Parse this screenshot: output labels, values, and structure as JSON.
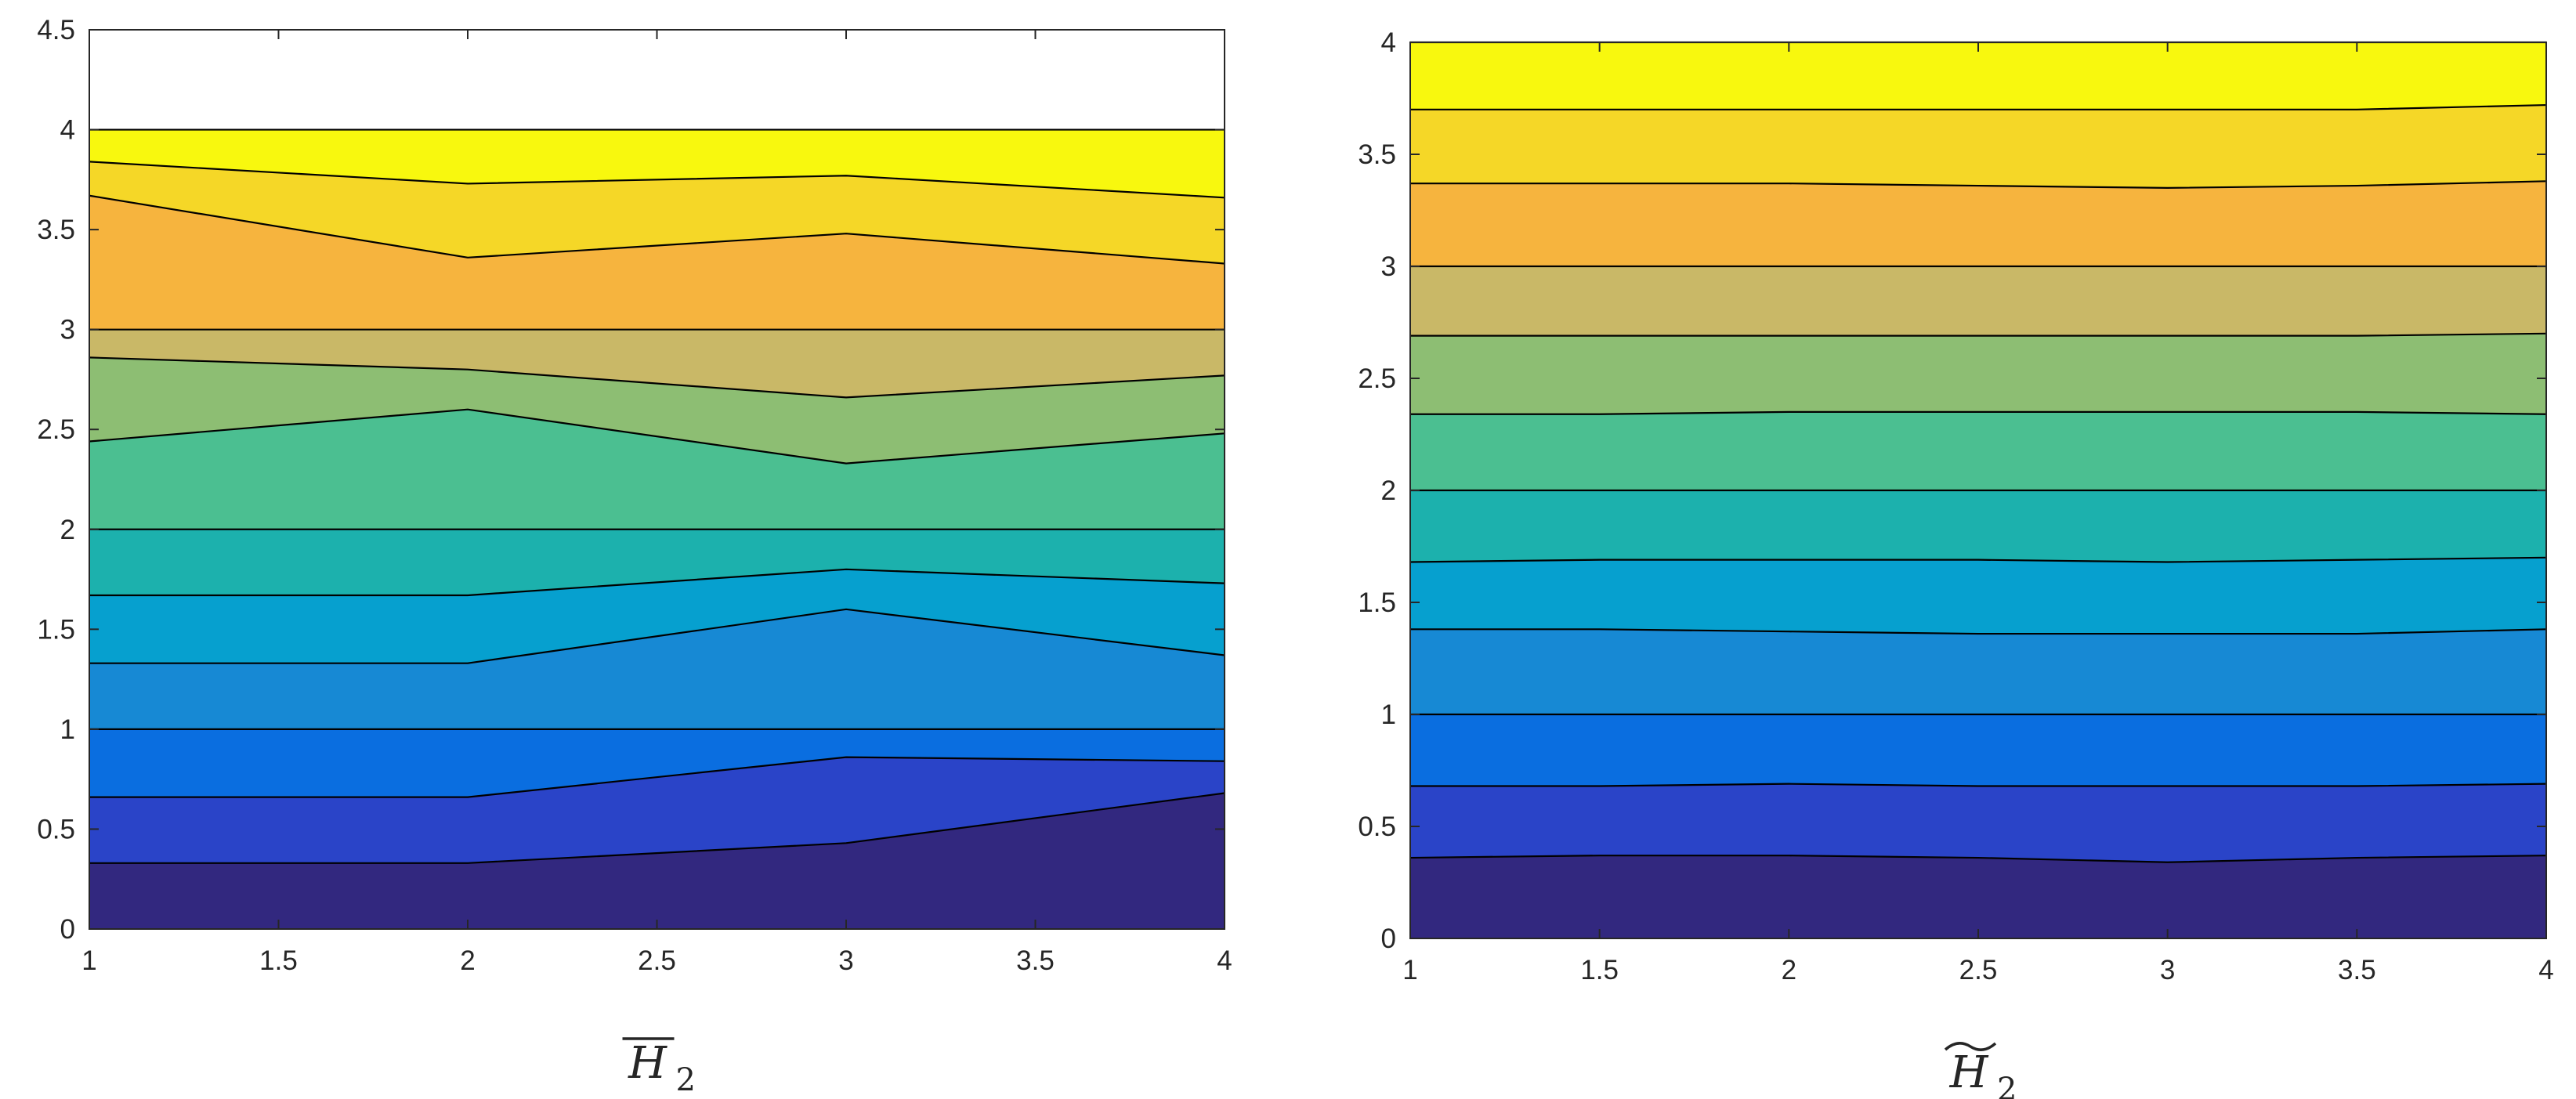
{
  "chart_data": [
    {
      "type": "contour",
      "xlabel": "H",
      "xlabel_subscript": "2",
      "xlabel_accent": "bar",
      "xlim": [
        1,
        4
      ],
      "ylim": [
        0,
        4.5
      ],
      "xticks": [
        "1",
        "1.5",
        "2",
        "2.5",
        "3",
        "3.5",
        "4"
      ],
      "yticks": [
        "0",
        "0.5",
        "1",
        "1.5",
        "2",
        "2.5",
        "3",
        "3.5",
        "4",
        "4.5"
      ],
      "x": [
        1,
        2,
        3,
        4
      ],
      "y_top": 4,
      "boundaries": [
        [
          0.33,
          0.33,
          0.43,
          0.68
        ],
        [
          0.66,
          0.66,
          0.86,
          0.84
        ],
        [
          1.0,
          1.0,
          1.0,
          1.0
        ],
        [
          1.33,
          1.33,
          1.6,
          1.37
        ],
        [
          1.67,
          1.67,
          1.8,
          1.73
        ],
        [
          2.0,
          2.0,
          2.0,
          2.0
        ],
        [
          2.44,
          2.6,
          2.33,
          2.48
        ],
        [
          2.86,
          2.8,
          2.66,
          2.77
        ],
        [
          3.0,
          3.0,
          3.0,
          3.0
        ],
        [
          3.67,
          3.36,
          3.48,
          3.33
        ],
        [
          3.84,
          3.73,
          3.77,
          3.66
        ]
      ],
      "colors": [
        "#32287f",
        "#2a44c8",
        "#0a6ee0",
        "#1789d4",
        "#06a0cf",
        "#1cb1ad",
        "#4bbf91",
        "#8dbe73",
        "#c9b867",
        "#f6b43e",
        "#f5d727",
        "#f8f80e"
      ],
      "grid": false
    },
    {
      "type": "contour",
      "xlabel": "H",
      "xlabel_subscript": "2",
      "xlabel_accent": "tilde",
      "xlim": [
        1,
        4
      ],
      "ylim": [
        0,
        4
      ],
      "xticks": [
        "1",
        "1.5",
        "2",
        "2.5",
        "3",
        "3.5",
        "4"
      ],
      "yticks": [
        "0",
        "0.5",
        "1",
        "1.5",
        "2",
        "2.5",
        "3",
        "3.5",
        "4"
      ],
      "x": [
        1,
        1.5,
        2,
        2.5,
        3,
        3.5,
        4
      ],
      "y_top": 4,
      "boundaries": [
        [
          0.36,
          0.37,
          0.37,
          0.36,
          0.34,
          0.36,
          0.37
        ],
        [
          0.68,
          0.68,
          0.69,
          0.68,
          0.68,
          0.68,
          0.69
        ],
        [
          1.0,
          1.0,
          1.0,
          1.0,
          1.0,
          1.0,
          1.0
        ],
        [
          1.38,
          1.38,
          1.37,
          1.36,
          1.36,
          1.36,
          1.38
        ],
        [
          1.68,
          1.69,
          1.69,
          1.69,
          1.68,
          1.69,
          1.7
        ],
        [
          2.0,
          2.0,
          2.0,
          2.0,
          2.0,
          2.0,
          2.0
        ],
        [
          2.34,
          2.34,
          2.35,
          2.35,
          2.35,
          2.35,
          2.34
        ],
        [
          2.69,
          2.69,
          2.69,
          2.69,
          2.69,
          2.69,
          2.7
        ],
        [
          3.0,
          3.0,
          3.0,
          3.0,
          3.0,
          3.0,
          3.0
        ],
        [
          3.37,
          3.37,
          3.37,
          3.36,
          3.35,
          3.36,
          3.38
        ],
        [
          3.7,
          3.7,
          3.7,
          3.7,
          3.7,
          3.7,
          3.72
        ]
      ],
      "colors": [
        "#32287f",
        "#2a44c8",
        "#0a6ee0",
        "#1789d4",
        "#06a0cf",
        "#1cb1ad",
        "#4bbf91",
        "#8dbe73",
        "#c9b867",
        "#f6b43e",
        "#f5d727",
        "#f8f80e"
      ],
      "grid": false
    }
  ]
}
